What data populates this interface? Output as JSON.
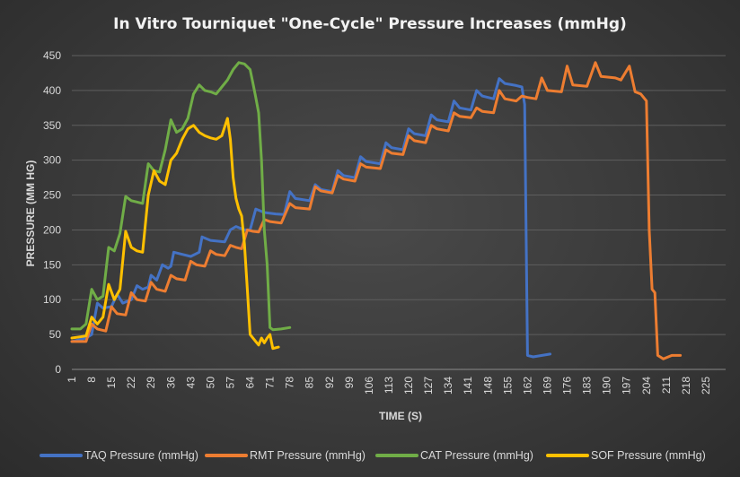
{
  "chart_data": {
    "type": "line",
    "title": "In Vitro Tourniquet \"One-Cycle\" Pressure Increases (mmHg)",
    "xlabel": "TIME (S)",
    "ylabel": "PRESSURE (MM HG)",
    "xlim": [
      1,
      232
    ],
    "ylim": [
      0,
      450
    ],
    "grid": true,
    "legend": "bottom",
    "x_ticks": [
      1,
      8,
      15,
      22,
      29,
      36,
      43,
      50,
      57,
      64,
      71,
      78,
      85,
      92,
      99,
      106,
      113,
      120,
      127,
      134,
      141,
      148,
      155,
      162,
      169,
      176,
      183,
      190,
      197,
      204,
      211,
      218,
      225
    ],
    "y_ticks": [
      0,
      50,
      100,
      150,
      200,
      250,
      300,
      350,
      400,
      450
    ],
    "series": [
      {
        "name": "TAQ Pressure (mmHg)",
        "color": "#4472C4",
        "points": [
          [
            1,
            40
          ],
          [
            6,
            45
          ],
          [
            8,
            50
          ],
          [
            10,
            95
          ],
          [
            12,
            88
          ],
          [
            15,
            90
          ],
          [
            17,
            108
          ],
          [
            19,
            95
          ],
          [
            22,
            100
          ],
          [
            24,
            120
          ],
          [
            26,
            115
          ],
          [
            28,
            118
          ],
          [
            29,
            135
          ],
          [
            31,
            128
          ],
          [
            33,
            150
          ],
          [
            35,
            145
          ],
          [
            36,
            148
          ],
          [
            37,
            168
          ],
          [
            40,
            165
          ],
          [
            43,
            162
          ],
          [
            46,
            168
          ],
          [
            47,
            190
          ],
          [
            50,
            185
          ],
          [
            55,
            183
          ],
          [
            57,
            200
          ],
          [
            59,
            205
          ],
          [
            62,
            200
          ],
          [
            64,
            200
          ],
          [
            66,
            230
          ],
          [
            69,
            225
          ],
          [
            73,
            223
          ],
          [
            76,
            222
          ],
          [
            78,
            255
          ],
          [
            80,
            245
          ],
          [
            85,
            242
          ],
          [
            87,
            265
          ],
          [
            89,
            258
          ],
          [
            93,
            255
          ],
          [
            95,
            285
          ],
          [
            97,
            278
          ],
          [
            101,
            275
          ],
          [
            103,
            305
          ],
          [
            105,
            298
          ],
          [
            110,
            295
          ],
          [
            112,
            325
          ],
          [
            114,
            318
          ],
          [
            118,
            315
          ],
          [
            120,
            345
          ],
          [
            122,
            338
          ],
          [
            126,
            335
          ],
          [
            128,
            365
          ],
          [
            130,
            358
          ],
          [
            134,
            355
          ],
          [
            136,
            385
          ],
          [
            138,
            375
          ],
          [
            142,
            372
          ],
          [
            144,
            400
          ],
          [
            146,
            392
          ],
          [
            150,
            388
          ],
          [
            152,
            417
          ],
          [
            154,
            410
          ],
          [
            158,
            407
          ],
          [
            160,
            405
          ],
          [
            161,
            380
          ],
          [
            162,
            20
          ],
          [
            164,
            18
          ],
          [
            170,
            22
          ]
        ]
      },
      {
        "name": "RMT Pressure (mmHg)",
        "color": "#ED7D31",
        "points": [
          [
            1,
            40
          ],
          [
            6,
            40
          ],
          [
            8,
            65
          ],
          [
            10,
            58
          ],
          [
            13,
            55
          ],
          [
            15,
            90
          ],
          [
            17,
            80
          ],
          [
            20,
            78
          ],
          [
            22,
            110
          ],
          [
            24,
            100
          ],
          [
            27,
            98
          ],
          [
            29,
            125
          ],
          [
            31,
            115
          ],
          [
            34,
            112
          ],
          [
            36,
            135
          ],
          [
            38,
            130
          ],
          [
            41,
            128
          ],
          [
            43,
            155
          ],
          [
            45,
            150
          ],
          [
            48,
            148
          ],
          [
            50,
            170
          ],
          [
            52,
            165
          ],
          [
            55,
            163
          ],
          [
            57,
            178
          ],
          [
            59,
            175
          ],
          [
            61,
            173
          ],
          [
            63,
            200
          ],
          [
            65,
            198
          ],
          [
            67,
            197
          ],
          [
            69,
            215
          ],
          [
            71,
            212
          ],
          [
            75,
            210
          ],
          [
            78,
            238
          ],
          [
            80,
            232
          ],
          [
            85,
            230
          ],
          [
            87,
            262
          ],
          [
            89,
            256
          ],
          [
            93,
            253
          ],
          [
            95,
            278
          ],
          [
            97,
            273
          ],
          [
            101,
            270
          ],
          [
            103,
            295
          ],
          [
            105,
            290
          ],
          [
            110,
            288
          ],
          [
            112,
            315
          ],
          [
            114,
            310
          ],
          [
            118,
            308
          ],
          [
            120,
            335
          ],
          [
            122,
            328
          ],
          [
            126,
            325
          ],
          [
            128,
            350
          ],
          [
            130,
            345
          ],
          [
            134,
            342
          ],
          [
            136,
            368
          ],
          [
            138,
            363
          ],
          [
            142,
            361
          ],
          [
            144,
            375
          ],
          [
            146,
            370
          ],
          [
            150,
            368
          ],
          [
            152,
            400
          ],
          [
            154,
            388
          ],
          [
            158,
            385
          ],
          [
            160,
            392
          ],
          [
            162,
            390
          ],
          [
            165,
            388
          ],
          [
            167,
            418
          ],
          [
            169,
            400
          ],
          [
            174,
            398
          ],
          [
            176,
            435
          ],
          [
            178,
            408
          ],
          [
            183,
            406
          ],
          [
            186,
            440
          ],
          [
            188,
            420
          ],
          [
            193,
            418
          ],
          [
            195,
            415
          ],
          [
            198,
            435
          ],
          [
            200,
            398
          ],
          [
            202,
            395
          ],
          [
            204,
            385
          ],
          [
            205,
            200
          ],
          [
            206,
            115
          ],
          [
            207,
            110
          ],
          [
            208,
            20
          ],
          [
            210,
            15
          ],
          [
            213,
            20
          ],
          [
            216,
            20
          ]
        ]
      },
      {
        "name": "CAT Pressure (mmHg)",
        "color": "#70AD47",
        "points": [
          [
            1,
            58
          ],
          [
            4,
            58
          ],
          [
            6,
            65
          ],
          [
            8,
            115
          ],
          [
            10,
            100
          ],
          [
            12,
            105
          ],
          [
            14,
            175
          ],
          [
            16,
            170
          ],
          [
            18,
            195
          ],
          [
            20,
            248
          ],
          [
            22,
            242
          ],
          [
            24,
            240
          ],
          [
            26,
            238
          ],
          [
            28,
            295
          ],
          [
            30,
            285
          ],
          [
            32,
            283
          ],
          [
            34,
            315
          ],
          [
            36,
            358
          ],
          [
            38,
            340
          ],
          [
            40,
            345
          ],
          [
            42,
            360
          ],
          [
            44,
            395
          ],
          [
            46,
            408
          ],
          [
            48,
            400
          ],
          [
            50,
            398
          ],
          [
            52,
            395
          ],
          [
            54,
            405
          ],
          [
            56,
            415
          ],
          [
            58,
            430
          ],
          [
            60,
            440
          ],
          [
            62,
            438
          ],
          [
            64,
            430
          ],
          [
            65,
            410
          ],
          [
            66,
            390
          ],
          [
            67,
            368
          ],
          [
            68,
            300
          ],
          [
            69,
            200
          ],
          [
            70,
            150
          ],
          [
            71,
            60
          ],
          [
            72,
            57
          ],
          [
            75,
            58
          ],
          [
            78,
            60
          ]
        ]
      },
      {
        "name": "SOF Pressure (mmHg)",
        "color": "#FFC000",
        "points": [
          [
            1,
            45
          ],
          [
            6,
            48
          ],
          [
            8,
            75
          ],
          [
            10,
            65
          ],
          [
            12,
            75
          ],
          [
            14,
            122
          ],
          [
            16,
            100
          ],
          [
            18,
            115
          ],
          [
            20,
            198
          ],
          [
            22,
            175
          ],
          [
            24,
            170
          ],
          [
            26,
            168
          ],
          [
            28,
            250
          ],
          [
            30,
            285
          ],
          [
            32,
            270
          ],
          [
            34,
            265
          ],
          [
            36,
            300
          ],
          [
            38,
            310
          ],
          [
            40,
            330
          ],
          [
            42,
            345
          ],
          [
            44,
            350
          ],
          [
            46,
            340
          ],
          [
            48,
            335
          ],
          [
            50,
            332
          ],
          [
            52,
            330
          ],
          [
            54,
            335
          ],
          [
            56,
            360
          ],
          [
            57,
            330
          ],
          [
            58,
            275
          ],
          [
            59,
            245
          ],
          [
            60,
            230
          ],
          [
            61,
            220
          ],
          [
            62,
            180
          ],
          [
            63,
            115
          ],
          [
            64,
            50
          ],
          [
            66,
            40
          ],
          [
            67,
            35
          ],
          [
            68,
            45
          ],
          [
            69,
            38
          ],
          [
            70,
            45
          ],
          [
            71,
            50
          ],
          [
            72,
            30
          ],
          [
            74,
            32
          ]
        ]
      }
    ]
  }
}
